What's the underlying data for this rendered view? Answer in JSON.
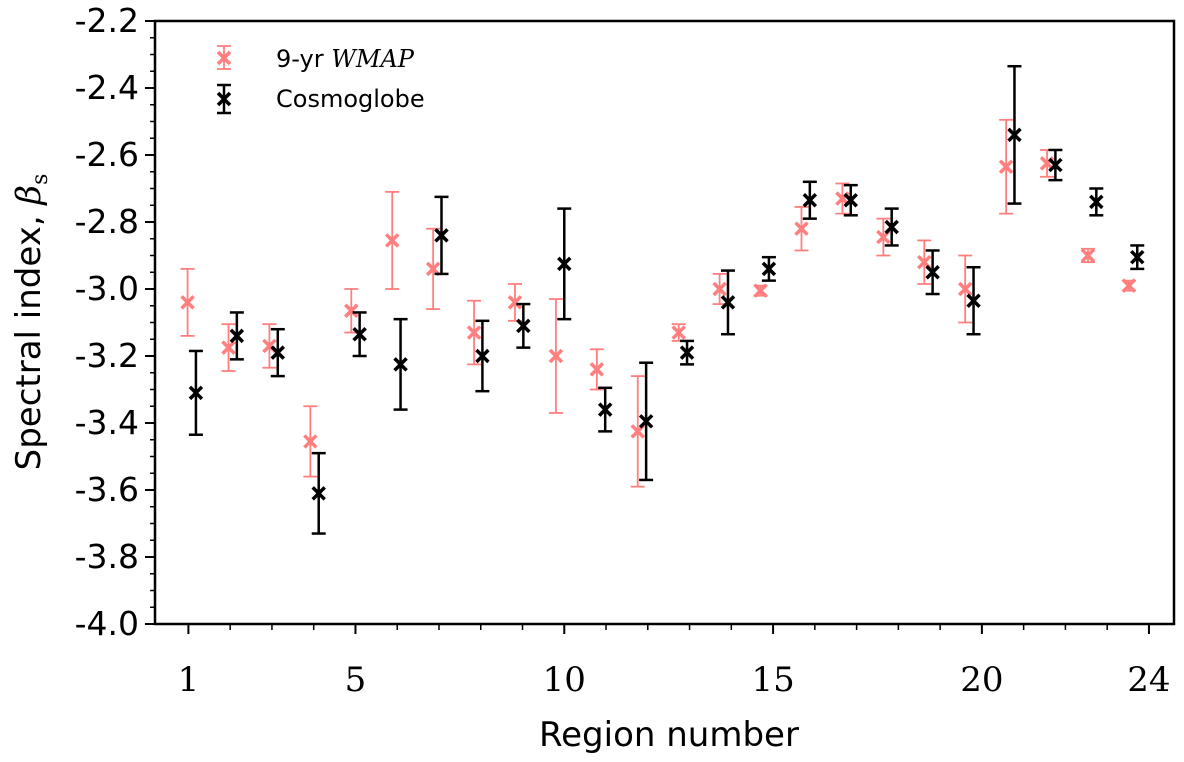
{
  "chart_data": {
    "type": "scatter",
    "xlabel": "Region number",
    "ylabel": "Spectral index,",
    "ylabel_symbol": "β",
    "ylabel_subscript": "s",
    "xlim": [
      0.2,
      24.6
    ],
    "ylim": [
      -4.0,
      -2.2
    ],
    "x_ticks": [
      1,
      5,
      10,
      15,
      20,
      24
    ],
    "y_ticks": [
      -4.0,
      -3.8,
      -3.6,
      -3.4,
      -3.2,
      -3.0,
      -2.8,
      -2.6,
      -2.4,
      -2.2
    ],
    "y_tick_labels": [
      "-4.0",
      "-3.8",
      "-3.6",
      "-3.4",
      "-3.2",
      "-3.0",
      "-2.8",
      "-2.6",
      "-2.4",
      "-2.2"
    ],
    "grid": false,
    "legend_position": "top-left",
    "series": [
      {
        "name": "9-yr",
        "name_math": "WMAP",
        "color": "#ff7f7f",
        "marker": "x",
        "x": [
          0.98,
          1.96,
          2.94,
          3.92,
          4.9,
          5.88,
          6.86,
          7.84,
          8.82,
          9.8,
          10.78,
          11.76,
          12.74,
          13.72,
          14.7,
          15.68,
          16.66,
          17.64,
          18.62,
          19.6,
          20.58,
          21.56,
          22.54,
          23.52
        ],
        "y": [
          -3.04,
          -3.175,
          -3.17,
          -3.455,
          -3.065,
          -2.855,
          -2.94,
          -3.13,
          -3.04,
          -3.2,
          -3.24,
          -3.425,
          -3.13,
          -3.0,
          -3.005,
          -2.82,
          -2.73,
          -2.845,
          -2.92,
          -3.0,
          -2.635,
          -2.625,
          -2.9,
          -2.99
        ],
        "yerr": [
          0.1,
          0.07,
          0.065,
          0.105,
          0.065,
          0.145,
          0.12,
          0.095,
          0.055,
          0.17,
          0.06,
          0.165,
          0.025,
          0.045,
          0.015,
          0.065,
          0.045,
          0.055,
          0.065,
          0.1,
          0.14,
          0.04,
          0.02,
          0.015
        ]
      },
      {
        "name": "Cosmoglobe",
        "color": "#000000",
        "marker": "x",
        "x": [
          1.18,
          2.16,
          3.14,
          4.12,
          5.1,
          6.08,
          7.06,
          8.04,
          9.02,
          10.0,
          10.98,
          11.96,
          12.94,
          13.92,
          14.9,
          15.88,
          16.86,
          17.84,
          18.82,
          19.8,
          20.78,
          21.76,
          22.74,
          23.72
        ],
        "y": [
          -3.31,
          -3.14,
          -3.19,
          -3.61,
          -3.135,
          -3.225,
          -2.84,
          -3.2,
          -3.11,
          -2.925,
          -3.36,
          -3.395,
          -3.19,
          -3.04,
          -2.94,
          -2.735,
          -2.735,
          -2.815,
          -2.95,
          -3.035,
          -2.54,
          -2.63,
          -2.74,
          -2.905
        ],
        "yerr": [
          0.125,
          0.07,
          0.07,
          0.12,
          0.065,
          0.135,
          0.115,
          0.105,
          0.065,
          0.165,
          0.065,
          0.175,
          0.035,
          0.095,
          0.035,
          0.055,
          0.045,
          0.055,
          0.065,
          0.1,
          0.205,
          0.045,
          0.04,
          0.035
        ]
      }
    ]
  }
}
